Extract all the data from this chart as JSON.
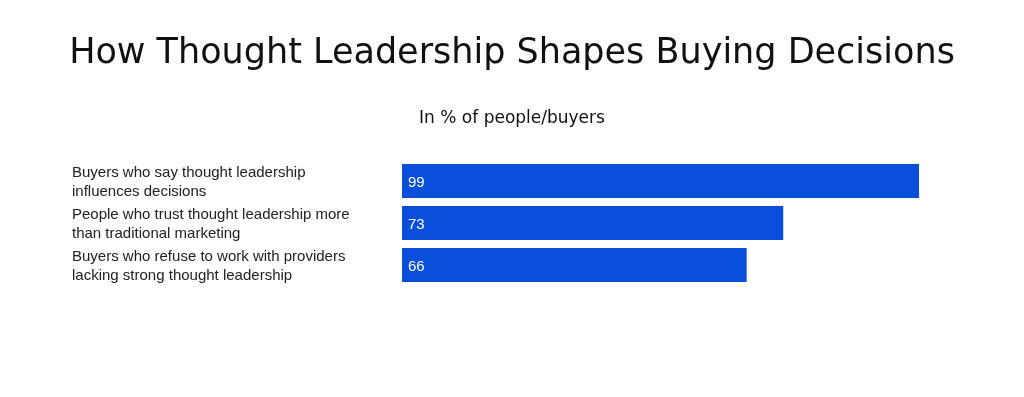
{
  "chart_data": {
    "type": "bar",
    "orientation": "horizontal",
    "title": "How Thought Leadership Shapes Buying Decisions",
    "subtitle": "In % of people/buyers",
    "categories": [
      "Buyers who say thought leadership influences decisions",
      "People who trust thought leadership more than traditional marketing",
      "Buyers who refuse to work with providers lacking strong thought leadership"
    ],
    "values": [
      99,
      73,
      66
    ],
    "color": "#0a4fdc",
    "data_labels": true
  }
}
